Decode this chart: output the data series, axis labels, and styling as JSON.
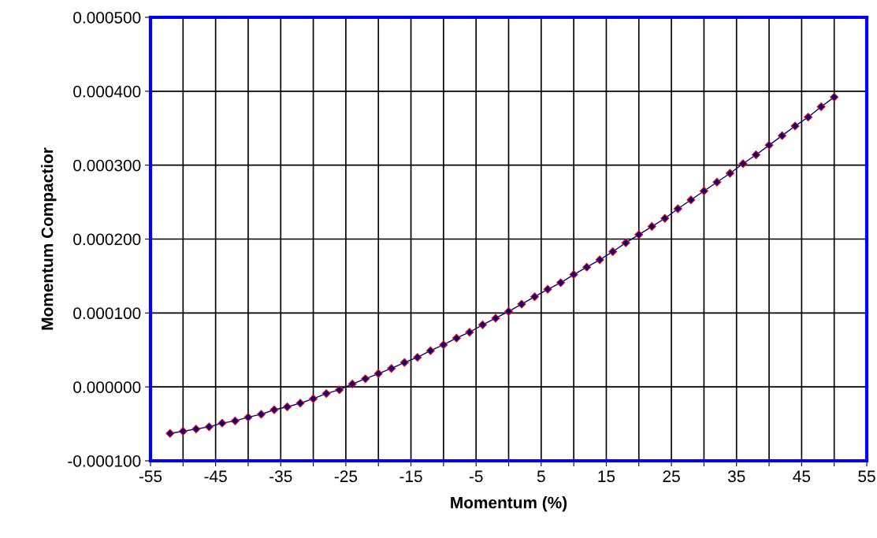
{
  "chart_data": {
    "type": "line",
    "xlabel": "Momentum (%)",
    "ylabel": "Momentum Compactior",
    "x": [
      -52,
      -50,
      -48,
      -46,
      -44,
      -42,
      -40,
      -38,
      -36,
      -34,
      -32,
      -30,
      -28,
      -26,
      -24,
      -22,
      -20,
      -18,
      -16,
      -14,
      -12,
      -10,
      -8,
      -6,
      -4,
      -2,
      0,
      2,
      4,
      6,
      8,
      10,
      12,
      14,
      16,
      18,
      20,
      22,
      24,
      26,
      28,
      30,
      32,
      34,
      36,
      38,
      40,
      42,
      44,
      46,
      48,
      50
    ],
    "series": [
      {
        "color": "#000080",
        "values": [
          -6.3e-05,
          -6e-05,
          -5.7e-05,
          -5.4e-05,
          -4.9e-05,
          -4.6e-05,
          -4.1e-05,
          -3.7e-05,
          -3.1e-05,
          -2.7e-05,
          -2.2e-05,
          -1.6e-05,
          -9e-06,
          -4e-06,
          4e-06,
          1.1e-05,
          1.8e-05,
          2.5e-05,
          3.3e-05,
          4e-05,
          4.9e-05,
          5.7e-05,
          6.6e-05,
          7.4e-05,
          8.4e-05,
          9.3e-05,
          0.000102,
          0.000112,
          0.000122,
          0.000132,
          0.000141,
          0.000152,
          0.000162,
          0.000172,
          0.000183,
          0.000195,
          0.000206,
          0.000217,
          0.000228,
          0.000241,
          0.000253,
          0.000265,
          0.000277,
          0.000289,
          0.000302,
          0.000314,
          0.000327,
          0.00034,
          0.000353,
          0.000365,
          0.000379,
          0.000392
        ]
      }
    ],
    "xlim": [
      -55,
      55
    ],
    "xticks": [
      -55,
      {
        "value": -50,
        "label": null
      },
      -45,
      {
        "value": -40,
        "label": null
      },
      -35,
      {
        "value": -30,
        "label": null
      },
      -25,
      {
        "value": -20,
        "label": null
      },
      -15,
      {
        "value": -10,
        "label": null
      },
      -5,
      {
        "value": 0,
        "label": null
      },
      5,
      {
        "value": 10,
        "label": null
      },
      15,
      {
        "value": 20,
        "label": null
      },
      25,
      {
        "value": 30,
        "label": null
      },
      35,
      {
        "value": 40,
        "label": null
      },
      45,
      {
        "value": 50,
        "label": null
      },
      55
    ],
    "ylim": [
      -0.0001,
      0.0005
    ],
    "yticks": [
      {
        "value": -0.0001,
        "label": "-0.000100"
      },
      {
        "value": 0,
        "label": "0.000000"
      },
      {
        "value": 0.0001,
        "label": "0.000100"
      },
      {
        "value": 0.0002,
        "label": "0.000200"
      },
      {
        "value": 0.0003,
        "label": "0.000300"
      },
      {
        "value": 0.0004,
        "label": "0.000400"
      },
      {
        "value": 0.0005,
        "label": "0.000500"
      }
    ],
    "grid": true,
    "marker": "diamond",
    "line_style": "solid"
  }
}
